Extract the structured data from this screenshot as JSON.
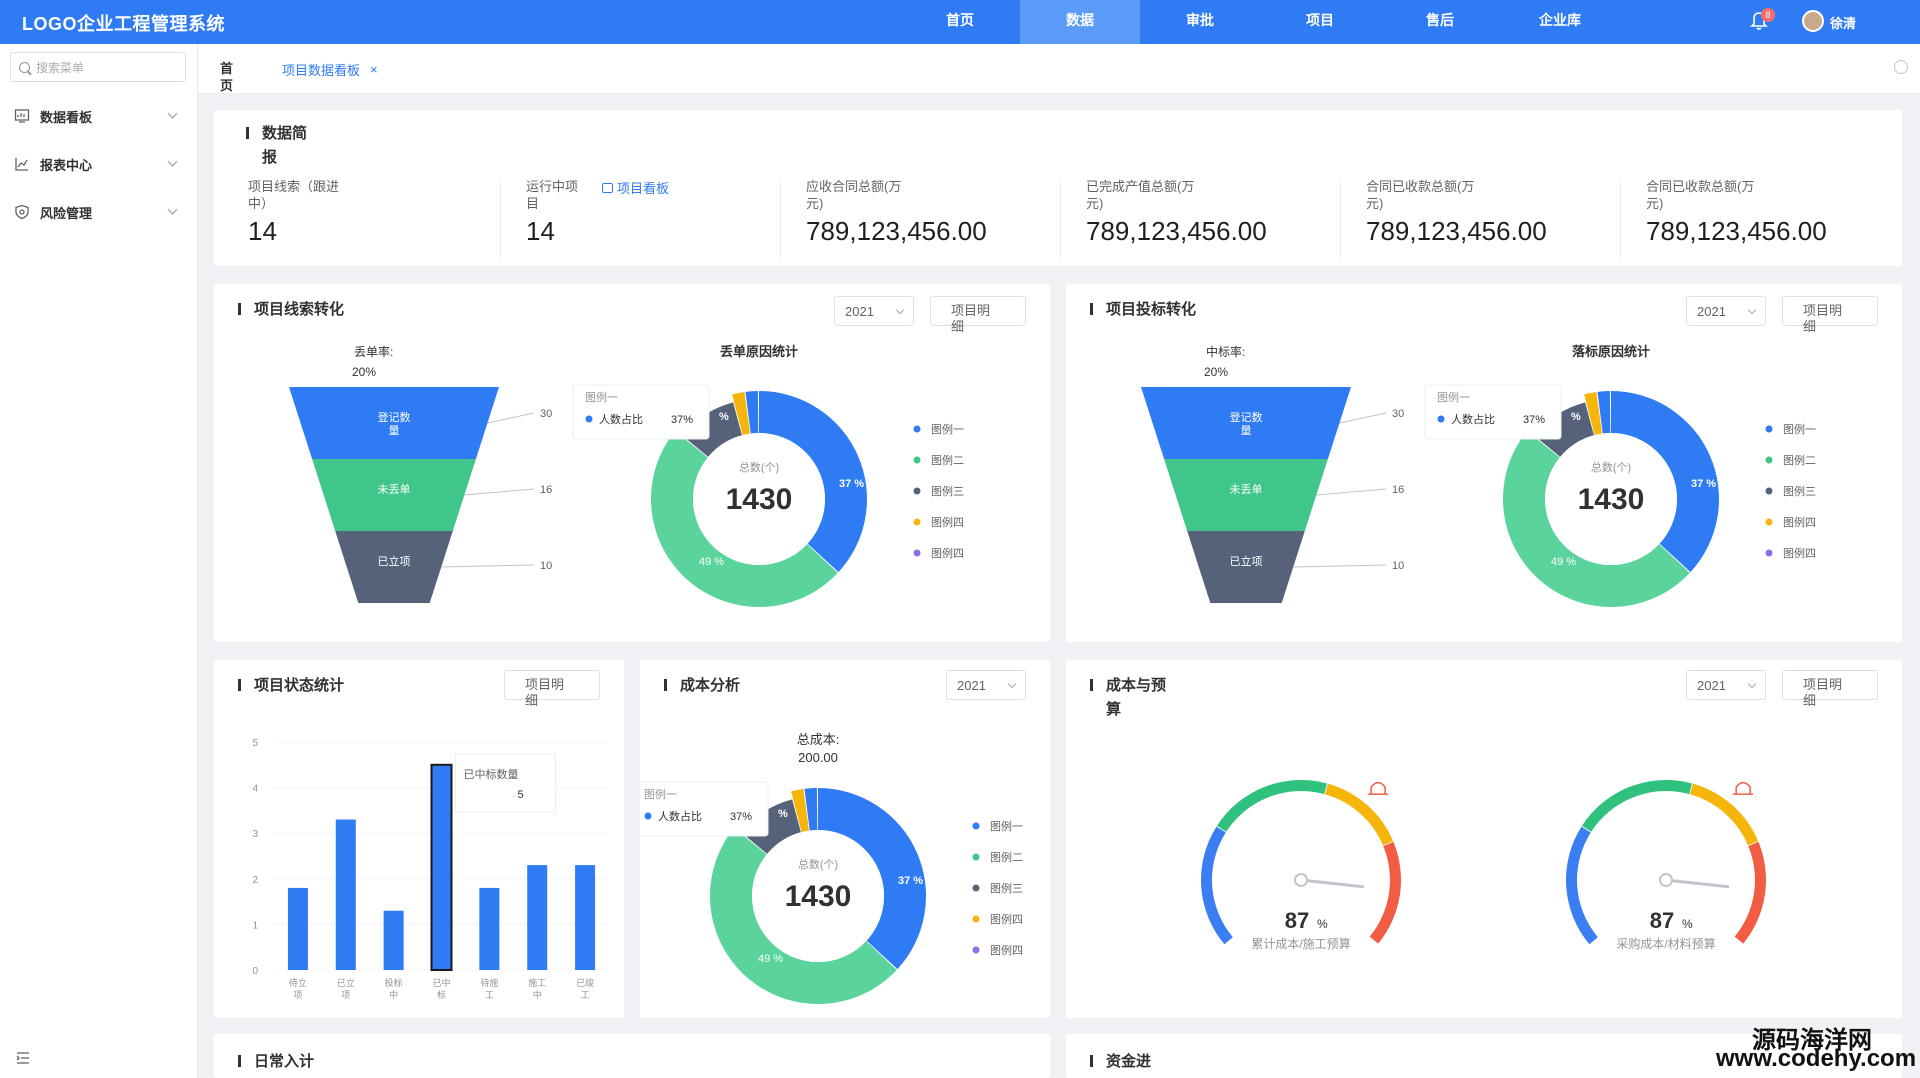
{
  "app": {
    "title": "LOGO企业工程管理系统"
  },
  "nav": [
    {
      "label": "首页",
      "active": false
    },
    {
      "label": "数据",
      "active": true
    },
    {
      "label": "审批",
      "active": false
    },
    {
      "label": "项目",
      "active": false
    },
    {
      "label": "售后",
      "active": false
    },
    {
      "label": "企业库",
      "active": false
    }
  ],
  "user": {
    "name": "徐清",
    "notifications": "8"
  },
  "sidebar": {
    "search_placeholder": "搜索菜单",
    "items": [
      {
        "label": "数据看板",
        "icon": "dashboard-icon"
      },
      {
        "label": "报表中心",
        "icon": "chart-icon"
      },
      {
        "label": "风险管理",
        "icon": "shield-icon"
      }
    ]
  },
  "tabs": {
    "home": "首页",
    "active": "项目数据看板",
    "close": "×"
  },
  "summary": {
    "title": "数据简报",
    "stats": [
      {
        "label": "项目线索（跟进中）",
        "value": "14"
      },
      {
        "label": "运行中项目",
        "value": "14",
        "link": "项目看板"
      },
      {
        "label": "应收合同总额(万元)",
        "value": "789,123,456.00"
      },
      {
        "label": "已完成产值总额(万元)",
        "value": "789,123,456.00"
      },
      {
        "label": "合同已收款总额(万元)",
        "value": "789,123,456.00"
      },
      {
        "label": "合同已收款总额(万元)",
        "value": "789,123,456.00"
      }
    ]
  },
  "common": {
    "year": "2021",
    "detail": "项目明细"
  },
  "clue_card": {
    "title": "项目线索转化",
    "funnel_rate_label": "丢单率:",
    "funnel_rate": "20%",
    "funnel": [
      {
        "label": "登记数量",
        "value": 30,
        "color": "#2f7bf3"
      },
      {
        "label": "未丢单",
        "value": 16,
        "color": "#40c58a"
      },
      {
        "label": "已立项",
        "value": 10,
        "color": "#55627a"
      }
    ],
    "donut_title": "丢单原因统计"
  },
  "bid_card": {
    "title": "项目投标转化",
    "funnel_rate_label": "中标率:",
    "funnel_rate": "20%",
    "funnel": [
      {
        "label": "登记数量",
        "value": 30,
        "color": "#2f7bf3"
      },
      {
        "label": "未丢单",
        "value": 16,
        "color": "#40c58a"
      },
      {
        "label": "已立项",
        "value": 10,
        "color": "#55627a"
      }
    ],
    "donut_title": "落标原因统计"
  },
  "donut": {
    "total_label": "总数(个)",
    "total": "1430",
    "tooltip_legend": "图例一",
    "tooltip_item": "人数占比",
    "tooltip_value": "37%",
    "slice_labels": [
      "37 %",
      "49 %",
      "%"
    ],
    "legend": [
      "图例一",
      "图例二",
      "图例三",
      "图例四",
      "图例四"
    ],
    "legend_colors": [
      "#2f7bf3",
      "#40c58a",
      "#55627a",
      "#f5b50a",
      "#8e6ee8"
    ],
    "slices": [
      {
        "value": 37,
        "color": "#2f7bf3"
      },
      {
        "value": 49,
        "color": "#5ad49c"
      },
      {
        "value": 10,
        "color": "#55627a"
      },
      {
        "value": 2,
        "color": "#f5b50a"
      },
      {
        "value": 2,
        "color": "#2f7bf3"
      }
    ]
  },
  "status_card": {
    "title": "项目状态统计",
    "yticks": [
      "5",
      "4",
      "3",
      "2",
      "1",
      "0"
    ],
    "tooltip_label": "已中标数量",
    "tooltip_value": "5",
    "chart_data": {
      "type": "bar",
      "categories": [
        "待立项",
        "已立项",
        "投标中",
        "已中标",
        "待施工",
        "施工中",
        "已竣工"
      ],
      "values": [
        1.8,
        3.3,
        1.3,
        4.5,
        1.8,
        2.3,
        2.3
      ],
      "ylim": [
        0,
        5
      ]
    }
  },
  "cost_card": {
    "title": "成本分析",
    "total_label": "总成本:",
    "total_value": "200.00"
  },
  "budget_card": {
    "title": "成本与预算",
    "gauges": [
      {
        "value": "87",
        "unit": "%",
        "label": "累计成本/施工预算",
        "percent": 87
      },
      {
        "value": "87",
        "unit": "%",
        "label": "采购成本/材料预算",
        "percent": 87
      }
    ]
  },
  "bottom_row": {
    "left_title": "日常入计",
    "right_title": "资金进"
  },
  "watermark": {
    "cn": "源码海洋网",
    "url": "www.codehy.com"
  }
}
